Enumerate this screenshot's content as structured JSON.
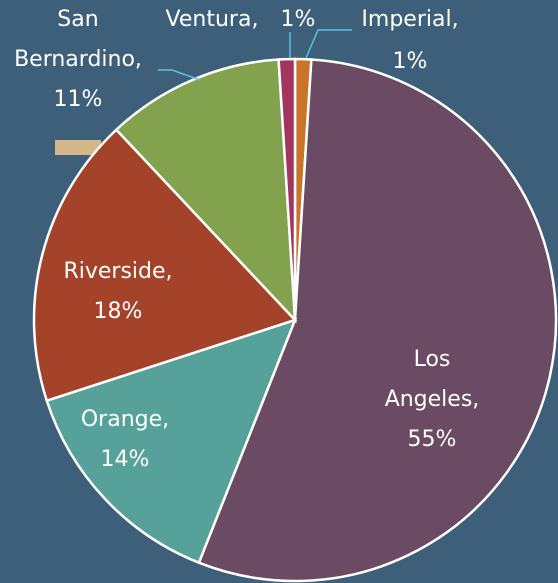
{
  "chart_data": {
    "type": "pie",
    "categories": [
      "Imperial,",
      "Los Angeles,",
      "Orange,",
      "Riverside,",
      "San Bernardino,",
      "Ventura,"
    ],
    "values": [
      1,
      55,
      14,
      18,
      11,
      1
    ],
    "value_labels": [
      "1%",
      "55%",
      "14%",
      "18%",
      "11%",
      "1%"
    ],
    "colors": [
      "#c8742a",
      "#6b4a63",
      "#56a19a",
      "#a5432a",
      "#82a24e",
      "#a3345e"
    ]
  }
}
